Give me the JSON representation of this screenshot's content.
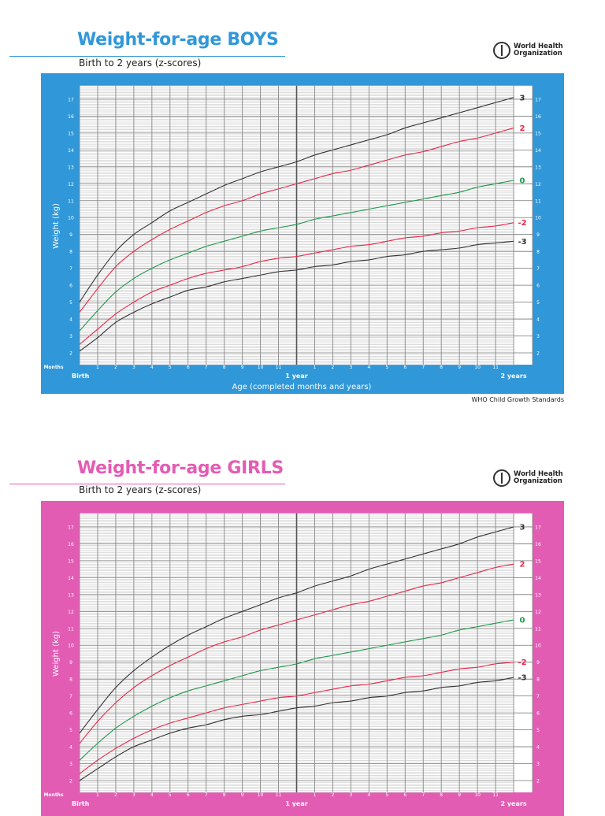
{
  "logo": {
    "line1": "World Health",
    "line2": "Organization"
  },
  "footer": "WHO Child Growth Standards",
  "colors": {
    "boys": "#3097d9",
    "girls": "#e35cb4",
    "z3": "#333333",
    "z2": "#e8284a",
    "z0": "#1f9a4b"
  },
  "chart_data": [
    {
      "type": "line",
      "title": "Weight-for-age BOYS",
      "subtitle": "Birth to 2 years (z-scores)",
      "xlabel": "Age (completed months and years)",
      "ylabel": "Weight (kg)",
      "x_unit_label": "Months",
      "x_major_labels": [
        "Birth",
        "1 year",
        "2 years"
      ],
      "x_month_ticks": [
        "1",
        "2",
        "3",
        "4",
        "5",
        "6",
        "7",
        "8",
        "9",
        "10",
        "11"
      ],
      "y_ticks": [
        2,
        3,
        4,
        5,
        6,
        7,
        8,
        9,
        10,
        11,
        12,
        13,
        14,
        15,
        16,
        17
      ],
      "xlim": [
        0,
        24
      ],
      "ylim": [
        1.3,
        17.8
      ],
      "grid": true,
      "x": [
        0,
        1,
        2,
        3,
        4,
        5,
        6,
        7,
        8,
        9,
        10,
        11,
        12,
        13,
        14,
        15,
        16,
        17,
        18,
        19,
        20,
        21,
        22,
        23,
        24
      ],
      "series": [
        {
          "name": "3",
          "color": "#333333",
          "values": [
            5.0,
            6.6,
            8.0,
            9.0,
            9.7,
            10.4,
            10.9,
            11.4,
            11.9,
            12.3,
            12.7,
            13.0,
            13.3,
            13.7,
            14.0,
            14.3,
            14.6,
            14.9,
            15.3,
            15.6,
            15.9,
            16.2,
            16.5,
            16.8,
            17.1
          ]
        },
        {
          "name": "2",
          "color": "#e8284a",
          "values": [
            4.4,
            5.8,
            7.1,
            8.0,
            8.7,
            9.3,
            9.8,
            10.3,
            10.7,
            11.0,
            11.4,
            11.7,
            12.0,
            12.3,
            12.6,
            12.8,
            13.1,
            13.4,
            13.7,
            13.9,
            14.2,
            14.5,
            14.7,
            15.0,
            15.3
          ]
        },
        {
          "name": "0",
          "color": "#1f9a4b",
          "values": [
            3.3,
            4.5,
            5.6,
            6.4,
            7.0,
            7.5,
            7.9,
            8.3,
            8.6,
            8.9,
            9.2,
            9.4,
            9.6,
            9.9,
            10.1,
            10.3,
            10.5,
            10.7,
            10.9,
            11.1,
            11.3,
            11.5,
            11.8,
            12.0,
            12.2
          ]
        },
        {
          "name": "-2",
          "color": "#e8284a",
          "values": [
            2.5,
            3.4,
            4.3,
            5.0,
            5.6,
            6.0,
            6.4,
            6.7,
            6.9,
            7.1,
            7.4,
            7.6,
            7.7,
            7.9,
            8.1,
            8.3,
            8.4,
            8.6,
            8.8,
            8.9,
            9.1,
            9.2,
            9.4,
            9.5,
            9.7
          ]
        },
        {
          "name": "-3",
          "color": "#333333",
          "values": [
            2.1,
            2.9,
            3.8,
            4.4,
            4.9,
            5.3,
            5.7,
            5.9,
            6.2,
            6.4,
            6.6,
            6.8,
            6.9,
            7.1,
            7.2,
            7.4,
            7.5,
            7.7,
            7.8,
            8.0,
            8.1,
            8.2,
            8.4,
            8.5,
            8.6
          ]
        }
      ]
    },
    {
      "type": "line",
      "title": "Weight-for-age GIRLS",
      "subtitle": "Birth to 2 years (z-scores)",
      "xlabel": "",
      "ylabel": "Weight (kg)",
      "x_unit_label": "Months",
      "x_major_labels": [
        "Birth",
        "1 year",
        "2 years"
      ],
      "x_month_ticks": [
        "1",
        "2",
        "3",
        "4",
        "5",
        "6",
        "7",
        "8",
        "9",
        "10",
        "11"
      ],
      "y_ticks": [
        2,
        3,
        4,
        5,
        6,
        7,
        8,
        9,
        10,
        11,
        12,
        13,
        14,
        15,
        16,
        17
      ],
      "xlim": [
        0,
        24
      ],
      "ylim": [
        1.3,
        17.8
      ],
      "grid": true,
      "x": [
        0,
        1,
        2,
        3,
        4,
        5,
        6,
        7,
        8,
        9,
        10,
        11,
        12,
        13,
        14,
        15,
        16,
        17,
        18,
        19,
        20,
        21,
        22,
        23,
        24
      ],
      "series": [
        {
          "name": "3",
          "color": "#333333",
          "values": [
            4.8,
            6.2,
            7.5,
            8.5,
            9.3,
            10.0,
            10.6,
            11.1,
            11.6,
            12.0,
            12.4,
            12.8,
            13.1,
            13.5,
            13.8,
            14.1,
            14.5,
            14.8,
            15.1,
            15.4,
            15.7,
            16.0,
            16.4,
            16.7,
            17.0
          ]
        },
        {
          "name": "2",
          "color": "#e8284a",
          "values": [
            4.2,
            5.5,
            6.6,
            7.5,
            8.2,
            8.8,
            9.3,
            9.8,
            10.2,
            10.5,
            10.9,
            11.2,
            11.5,
            11.8,
            12.1,
            12.4,
            12.6,
            12.9,
            13.2,
            13.5,
            13.7,
            14.0,
            14.3,
            14.6,
            14.8
          ]
        },
        {
          "name": "0",
          "color": "#1f9a4b",
          "values": [
            3.2,
            4.2,
            5.1,
            5.8,
            6.4,
            6.9,
            7.3,
            7.6,
            7.9,
            8.2,
            8.5,
            8.7,
            8.9,
            9.2,
            9.4,
            9.6,
            9.8,
            10.0,
            10.2,
            10.4,
            10.6,
            10.9,
            11.1,
            11.3,
            11.5
          ]
        },
        {
          "name": "-2",
          "color": "#e8284a",
          "values": [
            2.4,
            3.2,
            3.9,
            4.5,
            5.0,
            5.4,
            5.7,
            6.0,
            6.3,
            6.5,
            6.7,
            6.9,
            7.0,
            7.2,
            7.4,
            7.6,
            7.7,
            7.9,
            8.1,
            8.2,
            8.4,
            8.6,
            8.7,
            8.9,
            9.0
          ]
        },
        {
          "name": "-3",
          "color": "#333333",
          "values": [
            2.0,
            2.7,
            3.4,
            4.0,
            4.4,
            4.8,
            5.1,
            5.3,
            5.6,
            5.8,
            5.9,
            6.1,
            6.3,
            6.4,
            6.6,
            6.7,
            6.9,
            7.0,
            7.2,
            7.3,
            7.5,
            7.6,
            7.8,
            7.9,
            8.1
          ]
        }
      ]
    }
  ]
}
